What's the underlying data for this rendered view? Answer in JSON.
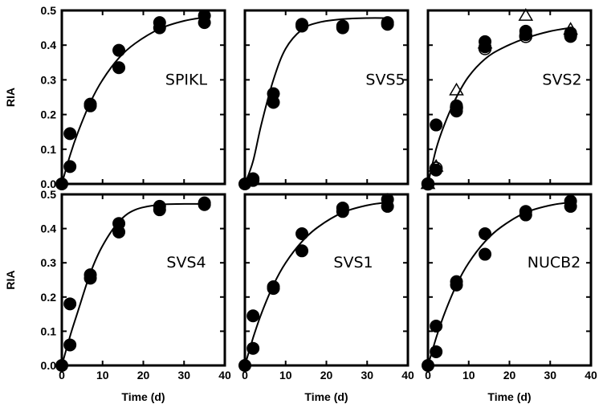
{
  "chart_data": [
    {
      "type": "scatter",
      "title": "SPIKL",
      "xlabel": "",
      "ylabel": "RIA",
      "xlim": [
        0,
        40
      ],
      "ylim": [
        0,
        0.5
      ],
      "xticks": [
        "0",
        "10",
        "20",
        "30",
        "40"
      ],
      "yticks": [
        "0.0",
        "0.1",
        "0.2",
        "0.3",
        "0.4",
        "0.5"
      ],
      "grid": false,
      "series": [
        {
          "marker": "filled-circle",
          "x": [
            0,
            2,
            2,
            7,
            7,
            14,
            14,
            24,
            24,
            35,
            35
          ],
          "y": [
            0.0,
            0.145,
            0.05,
            0.23,
            0.225,
            0.385,
            0.335,
            0.465,
            0.45,
            0.485,
            0.465
          ]
        },
        {
          "marker": "fit-line",
          "x": [
            0,
            2,
            4,
            7,
            10,
            14,
            18,
            24,
            30,
            35
          ],
          "y": [
            0.0,
            0.082,
            0.15,
            0.235,
            0.3,
            0.363,
            0.405,
            0.447,
            0.47,
            0.48
          ]
        }
      ]
    },
    {
      "type": "scatter",
      "title": "SVS5",
      "xlabel": "",
      "ylabel": "",
      "xlim": [
        0,
        40
      ],
      "ylim": [
        0,
        0.5
      ],
      "xticks": [
        "0",
        "10",
        "20",
        "30",
        "40"
      ],
      "yticks": [],
      "grid": false,
      "series": [
        {
          "marker": "filled-circle",
          "x": [
            0,
            2,
            2,
            7,
            7,
            14,
            14,
            24,
            24,
            35,
            35
          ],
          "y": [
            0.0,
            0.015,
            0.01,
            0.26,
            0.235,
            0.46,
            0.455,
            0.455,
            0.45,
            0.465,
            0.46
          ]
        },
        {
          "marker": "fit-line",
          "x": [
            0,
            2,
            4,
            7,
            10,
            14,
            18,
            24,
            30,
            35
          ],
          "y": [
            0.0,
            0.065,
            0.17,
            0.3,
            0.39,
            0.445,
            0.465,
            0.475,
            0.478,
            0.478
          ]
        }
      ]
    },
    {
      "type": "scatter",
      "title": "SVS2",
      "xlabel": "",
      "ylabel": "",
      "xlim": [
        0,
        40
      ],
      "ylim": [
        0,
        0.5
      ],
      "xticks": [
        "0",
        "10",
        "20",
        "30",
        "40"
      ],
      "yticks": [],
      "grid": false,
      "series": [
        {
          "marker": "filled-circle",
          "x": [
            0,
            2,
            2,
            7,
            7,
            14,
            14,
            24,
            24,
            35,
            35
          ],
          "y": [
            0.0,
            0.17,
            0.04,
            0.225,
            0.21,
            0.41,
            0.395,
            0.44,
            0.43,
            0.435,
            0.425
          ]
        },
        {
          "marker": "open-circle",
          "x": [
            0,
            2,
            7,
            14,
            24,
            35
          ],
          "y": [
            0.0,
            0.045,
            0.22,
            0.39,
            0.425,
            0.43
          ]
        },
        {
          "marker": "open-triangle",
          "x": [
            0,
            2,
            7,
            14,
            24,
            35
          ],
          "y": [
            0.0,
            0.05,
            0.27,
            0.405,
            0.485,
            0.445
          ]
        },
        {
          "marker": "fit-line",
          "x": [
            0,
            2,
            4,
            7,
            10,
            14,
            18,
            24,
            30,
            35
          ],
          "y": [
            0.0,
            0.1,
            0.17,
            0.25,
            0.31,
            0.36,
            0.39,
            0.42,
            0.44,
            0.45
          ]
        }
      ]
    },
    {
      "type": "scatter",
      "title": "SVS4",
      "xlabel": "Time (d)",
      "ylabel": "RIA",
      "xlim": [
        0,
        40
      ],
      "ylim": [
        0,
        0.5
      ],
      "xticks": [
        "0",
        "10",
        "20",
        "30",
        "40"
      ],
      "yticks": [
        "0.0",
        "0.1",
        "0.2",
        "0.3",
        "0.4",
        "0.5"
      ],
      "grid": false,
      "series": [
        {
          "marker": "filled-circle",
          "x": [
            0,
            2,
            2,
            7,
            7,
            14,
            14,
            24,
            24,
            35,
            35
          ],
          "y": [
            0.0,
            0.18,
            0.06,
            0.265,
            0.255,
            0.415,
            0.39,
            0.465,
            0.455,
            0.475,
            0.47
          ]
        },
        {
          "marker": "fit-line",
          "x": [
            0,
            2,
            4,
            7,
            10,
            14,
            18,
            24,
            30,
            35
          ],
          "y": [
            0.0,
            0.085,
            0.16,
            0.27,
            0.35,
            0.42,
            0.455,
            0.47,
            0.472,
            0.472
          ]
        }
      ]
    },
    {
      "type": "scatter",
      "title": "SVS1",
      "xlabel": "Time (d)",
      "ylabel": "",
      "xlim": [
        0,
        40
      ],
      "ylim": [
        0,
        0.5
      ],
      "xticks": [
        "0",
        "10",
        "20",
        "30",
        "40"
      ],
      "yticks": [],
      "grid": false,
      "series": [
        {
          "marker": "filled-circle",
          "x": [
            0,
            2,
            2,
            7,
            7,
            14,
            14,
            24,
            24,
            35,
            35
          ],
          "y": [
            0.0,
            0.145,
            0.05,
            0.23,
            0.225,
            0.385,
            0.335,
            0.46,
            0.45,
            0.485,
            0.465
          ]
        },
        {
          "marker": "fit-line",
          "x": [
            0,
            2,
            4,
            7,
            10,
            14,
            18,
            24,
            30,
            35
          ],
          "y": [
            0.0,
            0.08,
            0.15,
            0.235,
            0.3,
            0.362,
            0.405,
            0.447,
            0.468,
            0.477
          ]
        }
      ]
    },
    {
      "type": "scatter",
      "title": "NUCB2",
      "xlabel": "Time (d)",
      "ylabel": "",
      "xlim": [
        0,
        40
      ],
      "ylim": [
        0,
        0.5
      ],
      "xticks": [
        "0",
        "10",
        "20",
        "30",
        "40"
      ],
      "yticks": [],
      "grid": false,
      "series": [
        {
          "marker": "filled-circle",
          "x": [
            0,
            2,
            2,
            7,
            7,
            14,
            14,
            24,
            24,
            35,
            35
          ],
          "y": [
            0.0,
            0.115,
            0.04,
            0.245,
            0.235,
            0.385,
            0.325,
            0.45,
            0.44,
            0.48,
            0.465
          ]
        },
        {
          "marker": "fit-line",
          "x": [
            0,
            2,
            4,
            7,
            10,
            14,
            18,
            24,
            30,
            35
          ],
          "y": [
            0.0,
            0.08,
            0.15,
            0.235,
            0.3,
            0.362,
            0.405,
            0.447,
            0.468,
            0.477
          ]
        }
      ]
    }
  ]
}
